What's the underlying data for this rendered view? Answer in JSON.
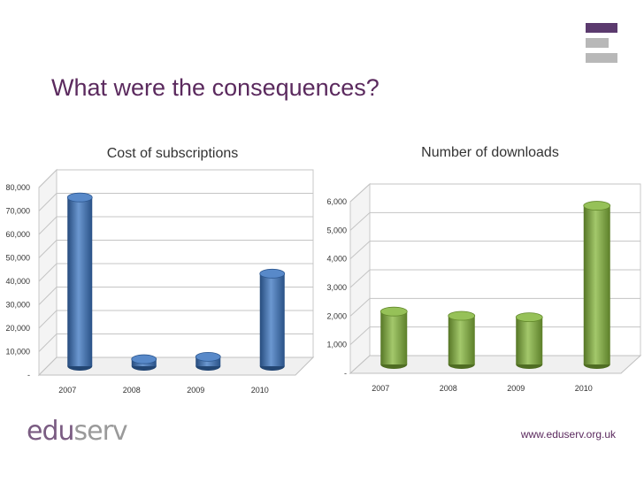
{
  "slide": {
    "title": "What were the consequences?",
    "url": "www.eduserv.org.uk",
    "logo": {
      "part1": "edu",
      "part2": "serv",
      "color1": "#7a5c82",
      "color2": "#9a9a9a"
    }
  },
  "colors": {
    "title": "#5b2a5e",
    "logo_purple": "#5b3a6e",
    "logo_grey": "#b8b8b8",
    "blue_bar": "#3a74c0",
    "green_bar": "#84b63a"
  },
  "chart_data": [
    {
      "type": "bar",
      "title": "Cost  of subscriptions",
      "categories": [
        "2007",
        "2008",
        "2009",
        "2010"
      ],
      "values": [
        72000,
        3000,
        4000,
        39500
      ],
      "ylim": [
        0,
        80000
      ],
      "yticks": [
        0,
        10000,
        20000,
        30000,
        40000,
        50000,
        60000,
        70000,
        80000
      ],
      "ytick_labels": [
        "-",
        "10,000",
        "20,000",
        "30,000",
        "40,000",
        "50,000",
        "60,000",
        "70,000",
        "80,000"
      ],
      "xlabel": "",
      "ylabel": "",
      "color": "#3a74c0"
    },
    {
      "type": "bar",
      "title": "Number of downloads",
      "categories": [
        "2007",
        "2008",
        "2009",
        "2010"
      ],
      "values": [
        1850,
        1700,
        1650,
        5550
      ],
      "ylim": [
        0,
        6000
      ],
      "yticks": [
        0,
        1000,
        2000,
        3000,
        4000,
        5000,
        6000
      ],
      "ytick_labels": [
        "-",
        "1,000",
        "2,000",
        "3,000",
        "4,000",
        "5,000",
        "6,000"
      ],
      "xlabel": "",
      "ylabel": "",
      "color": "#84b63a"
    }
  ]
}
